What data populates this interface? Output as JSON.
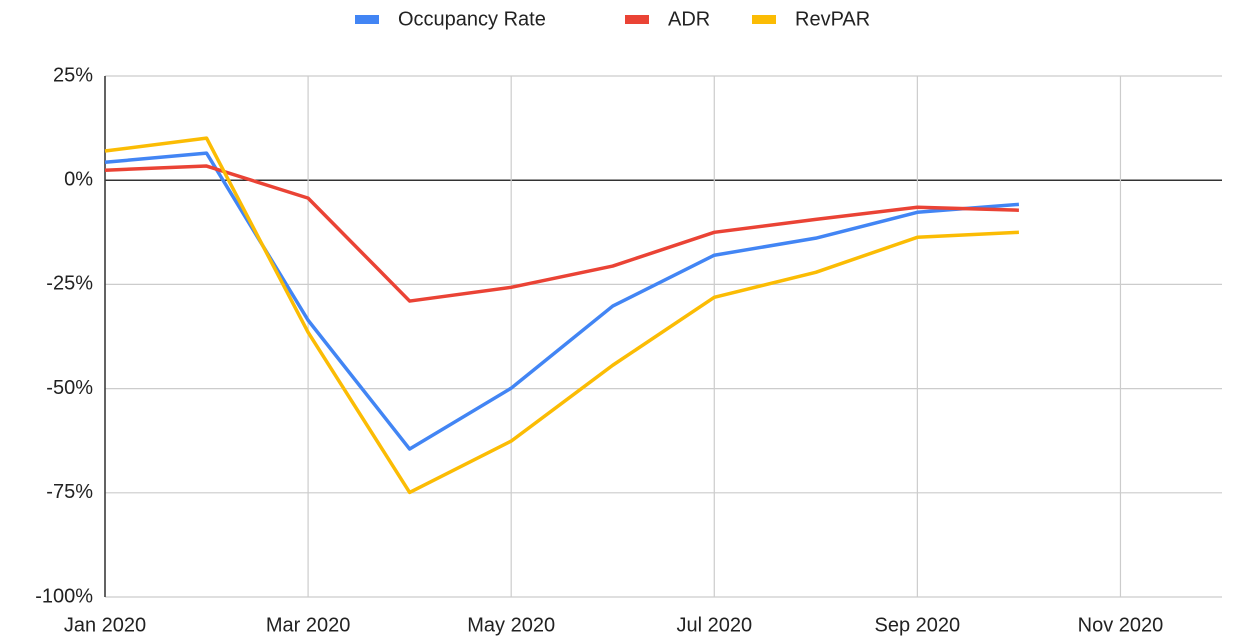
{
  "chart_data": {
    "type": "line",
    "x": [
      "2020-01",
      "2020-02",
      "2020-03",
      "2020-04",
      "2020-05",
      "2020-06",
      "2020-07",
      "2020-08",
      "2020-09",
      "2020-10"
    ],
    "series": [
      {
        "name": "Occupancy Rate",
        "color": "#4285f4",
        "values": [
          4.3,
          6.5,
          -33.6,
          -64.5,
          -49.9,
          -30.2,
          -18,
          -13.9,
          -7.7,
          -5.8
        ]
      },
      {
        "name": "ADR",
        "color": "#ea4335",
        "values": [
          2.4,
          3.4,
          -4.3,
          -29,
          -25.7,
          -20.6,
          -12.5,
          -9.4,
          -6.5,
          -7.2
        ]
      },
      {
        "name": "RevPAR",
        "color": "#fbbc04",
        "values": [
          7,
          10.1,
          -36.5,
          -74.9,
          -62.6,
          -44.4,
          -28.1,
          -22.1,
          -13.7,
          -12.5
        ]
      }
    ],
    "xlim": [
      "2020-01",
      "2020-12"
    ],
    "xticks": [
      {
        "value": "2020-01",
        "label": "Jan 2020"
      },
      {
        "value": "2020-03",
        "label": "Mar 2020"
      },
      {
        "value": "2020-05",
        "label": "May 2020"
      },
      {
        "value": "2020-07",
        "label": "Jul 2020"
      },
      {
        "value": "2020-09",
        "label": "Sep 2020"
      },
      {
        "value": "2020-11",
        "label": "Nov 2020"
      }
    ],
    "ylim": [
      -100,
      25
    ],
    "yticks": [
      {
        "value": -100,
        "label": "-100%"
      },
      {
        "value": -75,
        "label": "-75%"
      },
      {
        "value": -50,
        "label": "-50%"
      },
      {
        "value": -25,
        "label": "-25%"
      },
      {
        "value": 0,
        "label": "0%"
      },
      {
        "value": 25,
        "label": "25%"
      }
    ],
    "grid": true,
    "legend": "top"
  }
}
